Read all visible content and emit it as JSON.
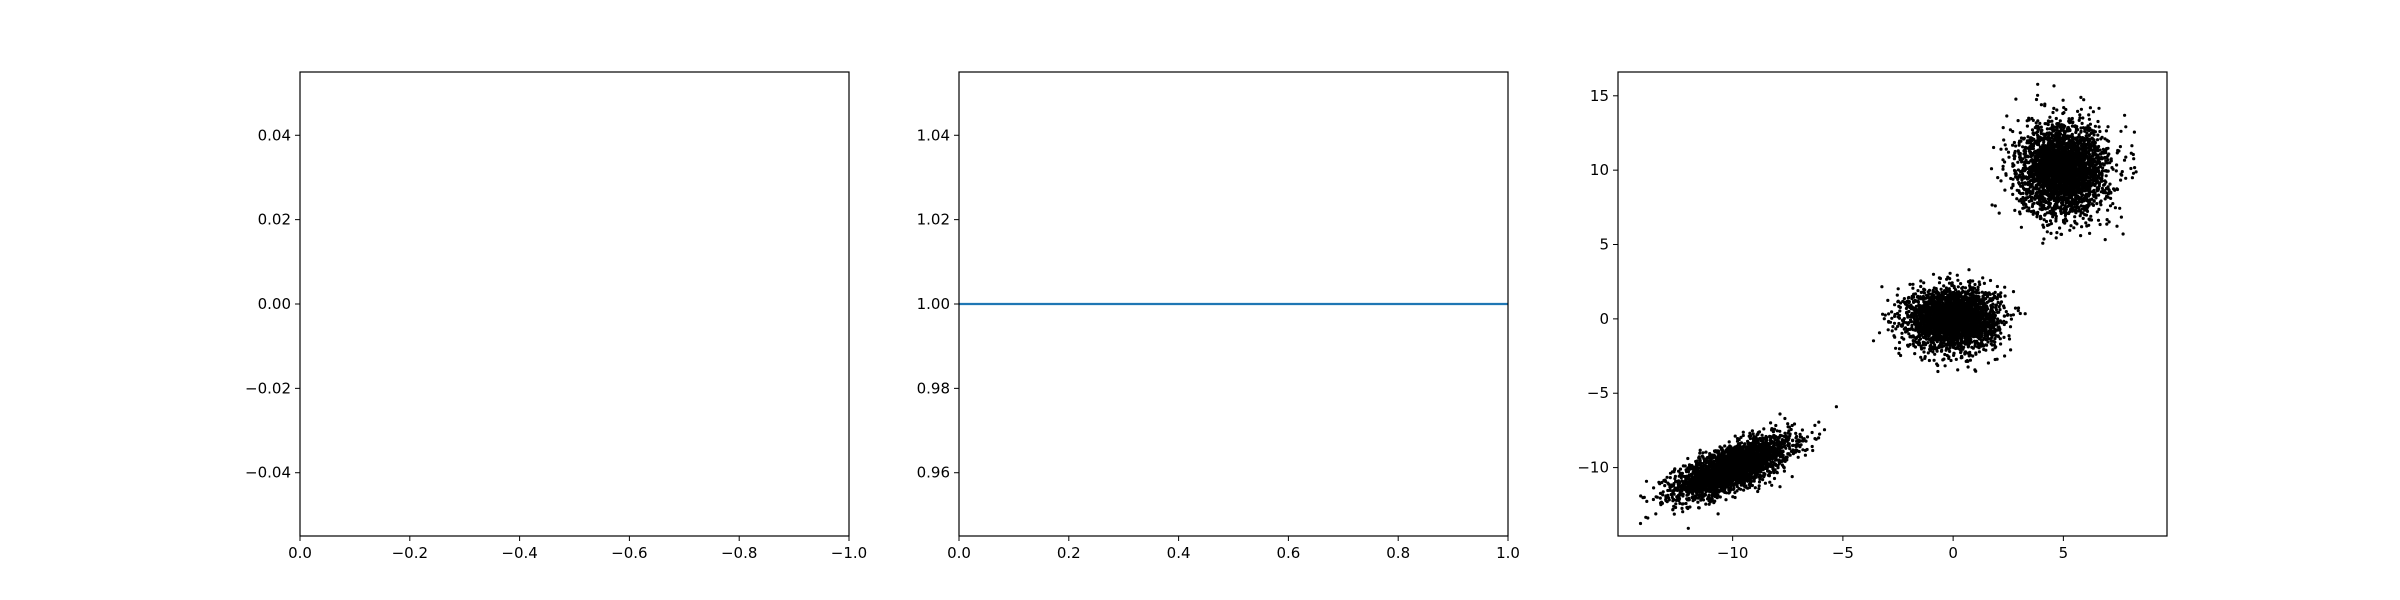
{
  "chart_data": [
    {
      "type": "line",
      "title": "",
      "xlabel": "",
      "ylabel": "",
      "xlim": [
        0.0,
        -1.0
      ],
      "ylim": [
        -0.055,
        0.055
      ],
      "xticks": [
        0.0,
        -0.2,
        -0.4,
        -0.6,
        -0.8,
        -1.0
      ],
      "xtick_labels": [
        "0.0",
        "−0.2",
        "−0.4",
        "−0.6",
        "−0.8",
        "−1.0"
      ],
      "yticks": [
        -0.04,
        -0.02,
        0.0,
        0.02,
        0.04
      ],
      "ytick_labels": [
        "−0.04",
        "−0.02",
        "0.00",
        "0.02",
        "0.04"
      ],
      "series": []
    },
    {
      "type": "line",
      "title": "",
      "xlabel": "",
      "ylabel": "",
      "xlim": [
        0.0,
        1.0
      ],
      "ylim": [
        0.945,
        1.055
      ],
      "xticks": [
        0.0,
        0.2,
        0.4,
        0.6,
        0.8,
        1.0
      ],
      "xtick_labels": [
        "0.0",
        "0.2",
        "0.4",
        "0.6",
        "0.8",
        "1.0"
      ],
      "yticks": [
        0.96,
        0.98,
        1.0,
        1.02,
        1.04
      ],
      "ytick_labels": [
        "0.96",
        "0.98",
        "1.00",
        "1.02",
        "1.04"
      ],
      "series": [
        {
          "x": [
            0.0,
            1.0
          ],
          "y": [
            1.0,
            1.0
          ],
          "color": "#1f77b4"
        }
      ]
    },
    {
      "type": "scatter",
      "title": "",
      "xlabel": "",
      "ylabel": "",
      "xlim": [
        -15.2,
        9.7
      ],
      "ylim": [
        -14.6,
        16.6
      ],
      "xticks": [
        -10,
        -5,
        0,
        5
      ],
      "xtick_labels": [
        "−10",
        "−5",
        "0",
        "5"
      ],
      "yticks": [
        -10,
        -5,
        0,
        5,
        10,
        15
      ],
      "ytick_labels": [
        "−10",
        "−5",
        "0",
        "5",
        "10",
        "15"
      ],
      "marker_color": "#000000",
      "clusters": [
        {
          "center": [
            -10.0,
            -10.0
          ],
          "spread": [
            1.3,
            1.0
          ],
          "correlation": 0.7,
          "count": 3000
        },
        {
          "center": [
            0.0,
            0.0
          ],
          "spread": [
            1.0,
            1.0
          ],
          "correlation": 0.0,
          "count": 3000
        },
        {
          "center": [
            5.0,
            10.0
          ],
          "spread": [
            1.0,
            1.5
          ],
          "correlation": 0.0,
          "count": 3000
        }
      ]
    }
  ]
}
